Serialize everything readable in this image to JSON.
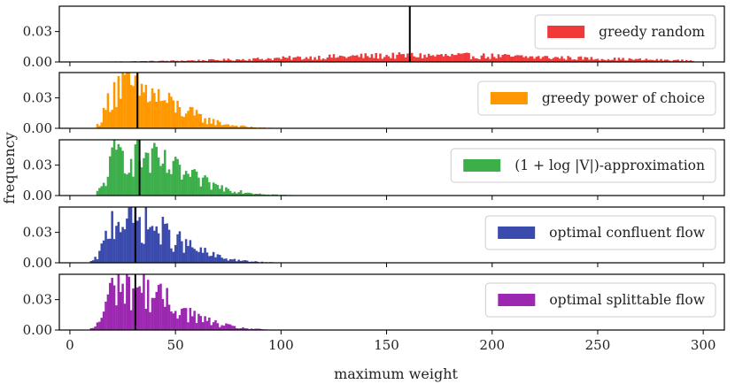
{
  "chart_data": {
    "type": "bar",
    "subtype": "histogram-stack",
    "xlabel": "maximum weight",
    "ylabel": "frequency",
    "xlim": [
      -5,
      310
    ],
    "ylim": [
      0,
      0.055
    ],
    "xticks": [
      0,
      50,
      100,
      150,
      200,
      250,
      300
    ],
    "yticks": [
      0.0,
      0.03
    ],
    "ytick_labels": [
      "0.00",
      "0.03"
    ],
    "legend_position": "right",
    "panels": [
      {
        "name": "greedy random",
        "color": "#f03a3a",
        "marker": 161,
        "dist": {
          "min": 20,
          "max": 295,
          "peak": 165,
          "spreadLeft": 62,
          "spreadRight": 75,
          "peakHeight": 0.0062
        }
      },
      {
        "name": "greedy power of choice",
        "color": "#ff9800",
        "marker": 32,
        "dist": {
          "min": 13,
          "max": 140,
          "peak": 22,
          "spreadLeft": 4,
          "spreadRight": 24,
          "peakHeight": 0.042
        }
      },
      {
        "name": "(1 + log |V|)-approximation",
        "color": "#3cae4a",
        "marker": 33,
        "dist": {
          "min": 13,
          "max": 160,
          "peak": 23,
          "spreadLeft": 4.5,
          "spreadRight": 27,
          "peakHeight": 0.041
        }
      },
      {
        "name": "optimal confluent flow",
        "color": "#3a4aad",
        "marker": 31,
        "dist": {
          "min": 10,
          "max": 160,
          "peak": 22,
          "spreadLeft": 4.5,
          "spreadRight": 24,
          "peakHeight": 0.045
        }
      },
      {
        "name": "optimal splittable flow",
        "color": "#9c27b0",
        "marker": 31,
        "dist": {
          "min": 10,
          "max": 155,
          "peak": 22,
          "spreadLeft": 4.5,
          "spreadRight": 24,
          "peakHeight": 0.045
        }
      }
    ]
  }
}
